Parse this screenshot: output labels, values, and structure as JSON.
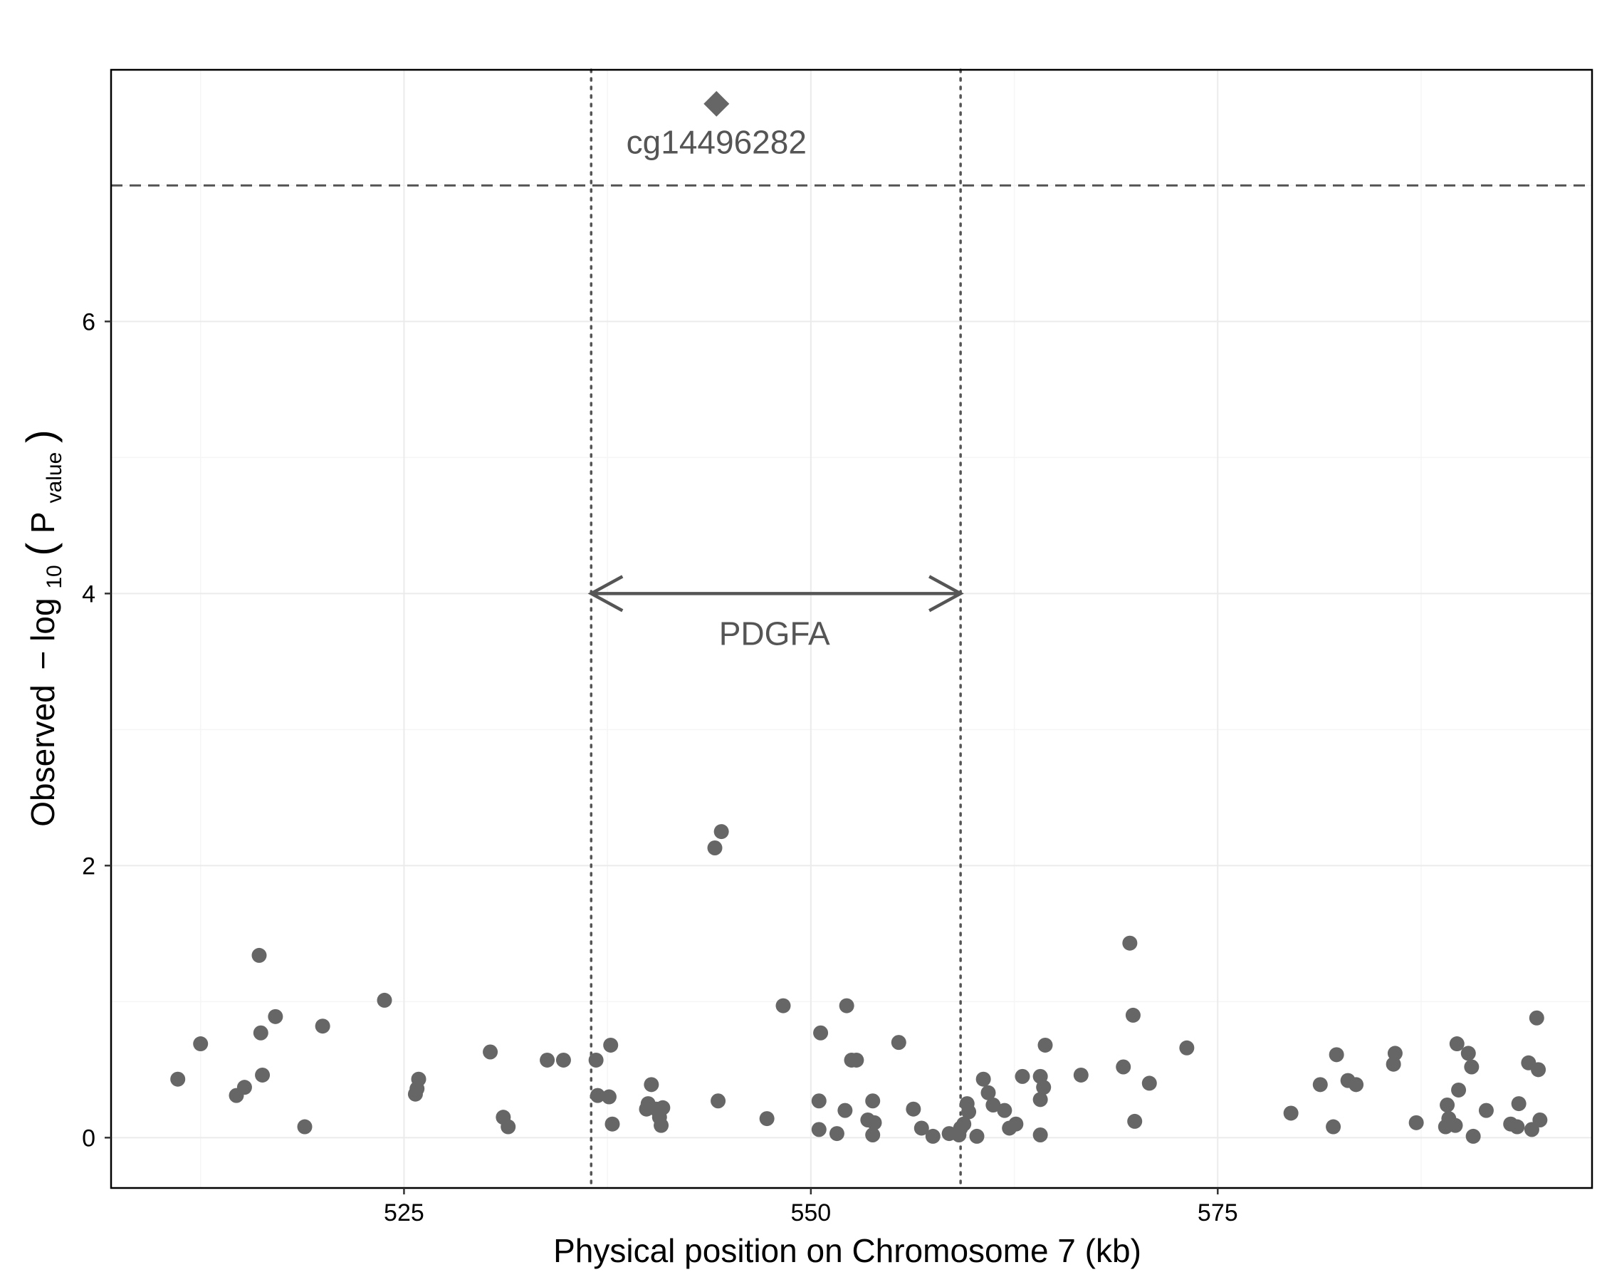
{
  "chart_data": {
    "type": "scatter",
    "title": "",
    "xlabel": "Physical position on Chromosome 7 (kb)",
    "ylabel": {
      "prefix": "Observed",
      "minus": "−",
      "log": "log",
      "log_sub": "10",
      "open": "(",
      "p": "P",
      "p_sub": "value",
      "close": ")"
    },
    "xlim": [
      507,
      598
    ],
    "ylim": [
      -0.37,
      7.85
    ],
    "x_ticks": [
      525,
      550,
      575
    ],
    "x_tick_labels": [
      "525",
      "550",
      "575"
    ],
    "y_ticks": [
      0,
      2,
      4,
      6
    ],
    "y_tick_labels": [
      "0",
      "2",
      "4",
      "6"
    ],
    "grid": true,
    "colors": {
      "points": "#666666",
      "lines": "#555555",
      "grid_major": "#ebebeb",
      "grid_minor": "#f5f5f5",
      "border": "#000000"
    },
    "significance_threshold": 7.0,
    "gene_region": {
      "name": "PDGFA",
      "start": 536.5,
      "end": 559.2,
      "arrow_y": 4.0
    },
    "highlight": {
      "label": "cg14496282",
      "x": 544.2,
      "y": 7.6,
      "marker": "diamond"
    },
    "points": [
      [
        511.1,
        0.43
      ],
      [
        512.5,
        0.69
      ],
      [
        514.7,
        0.31
      ],
      [
        515.2,
        0.37
      ],
      [
        516.1,
        1.34
      ],
      [
        516.2,
        0.77
      ],
      [
        516.3,
        0.46
      ],
      [
        517.1,
        0.89
      ],
      [
        518.9,
        0.08
      ],
      [
        520.0,
        0.82
      ],
      [
        523.8,
        1.01
      ],
      [
        525.7,
        0.32
      ],
      [
        525.8,
        0.36
      ],
      [
        525.9,
        0.43
      ],
      [
        530.3,
        0.63
      ],
      [
        531.1,
        0.15
      ],
      [
        531.4,
        0.08
      ],
      [
        533.8,
        0.57
      ],
      [
        534.8,
        0.57
      ],
      [
        536.8,
        0.57
      ],
      [
        536.9,
        0.31
      ],
      [
        537.6,
        0.3
      ],
      [
        537.7,
        0.68
      ],
      [
        537.8,
        0.1
      ],
      [
        539.9,
        0.21
      ],
      [
        540.0,
        0.25
      ],
      [
        540.2,
        0.39
      ],
      [
        540.5,
        0.21
      ],
      [
        540.7,
        0.15
      ],
      [
        540.8,
        0.09
      ],
      [
        540.9,
        0.22
      ],
      [
        544.1,
        2.13
      ],
      [
        544.3,
        0.27
      ],
      [
        544.5,
        2.25
      ],
      [
        547.3,
        0.14
      ],
      [
        548.3,
        0.97
      ],
      [
        550.5,
        0.27
      ],
      [
        550.5,
        0.06
      ],
      [
        550.6,
        0.77
      ],
      [
        551.6,
        0.03
      ],
      [
        552.1,
        0.2
      ],
      [
        552.2,
        0.97
      ],
      [
        552.5,
        0.57
      ],
      [
        552.8,
        0.57
      ],
      [
        553.5,
        0.13
      ],
      [
        553.8,
        0.27
      ],
      [
        553.8,
        0.02
      ],
      [
        553.9,
        0.11
      ],
      [
        555.4,
        0.7
      ],
      [
        556.3,
        0.21
      ],
      [
        556.8,
        0.07
      ],
      [
        557.5,
        0.01
      ],
      [
        558.5,
        0.03
      ],
      [
        559.1,
        0.02
      ],
      [
        559.2,
        0.07
      ],
      [
        559.4,
        0.1
      ],
      [
        559.6,
        0.25
      ],
      [
        559.7,
        0.19
      ],
      [
        560.2,
        0.01
      ],
      [
        560.6,
        0.43
      ],
      [
        560.9,
        0.33
      ],
      [
        561.2,
        0.24
      ],
      [
        561.9,
        0.2
      ],
      [
        562.2,
        0.07
      ],
      [
        562.6,
        0.1
      ],
      [
        563.0,
        0.45
      ],
      [
        564.1,
        0.45
      ],
      [
        564.1,
        0.28
      ],
      [
        564.1,
        0.02
      ],
      [
        564.3,
        0.37
      ],
      [
        564.4,
        0.68
      ],
      [
        566.6,
        0.46
      ],
      [
        569.2,
        0.52
      ],
      [
        569.6,
        1.43
      ],
      [
        569.8,
        0.9
      ],
      [
        569.9,
        0.12
      ],
      [
        570.8,
        0.4
      ],
      [
        573.1,
        0.66
      ],
      [
        579.5,
        0.18
      ],
      [
        581.3,
        0.39
      ],
      [
        582.1,
        0.08
      ],
      [
        582.3,
        0.61
      ],
      [
        583.0,
        0.42
      ],
      [
        583.5,
        0.39
      ],
      [
        585.8,
        0.54
      ],
      [
        585.9,
        0.62
      ],
      [
        587.2,
        0.11
      ],
      [
        589.0,
        0.08
      ],
      [
        589.1,
        0.24
      ],
      [
        589.2,
        0.14
      ],
      [
        589.6,
        0.09
      ],
      [
        589.7,
        0.69
      ],
      [
        589.8,
        0.35
      ],
      [
        590.4,
        0.62
      ],
      [
        590.6,
        0.52
      ],
      [
        590.7,
        0.01
      ],
      [
        591.5,
        0.2
      ],
      [
        593.0,
        0.1
      ],
      [
        593.4,
        0.08
      ],
      [
        593.5,
        0.25
      ],
      [
        594.1,
        0.55
      ],
      [
        594.3,
        0.06
      ],
      [
        594.6,
        0.88
      ],
      [
        594.7,
        0.5
      ],
      [
        594.8,
        0.13
      ]
    ]
  }
}
